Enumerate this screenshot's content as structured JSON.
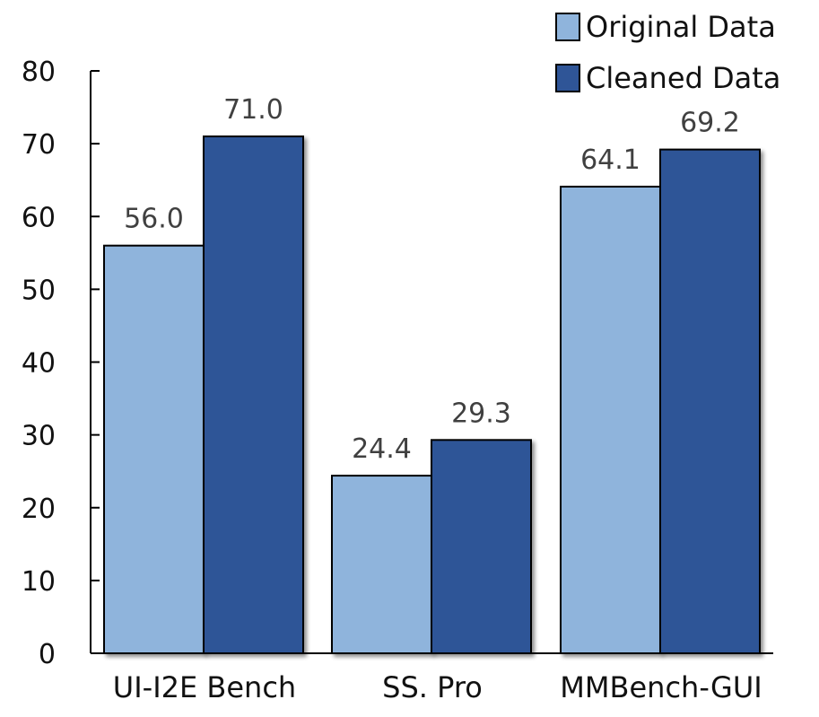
{
  "chart_data": {
    "type": "bar",
    "title": "",
    "xlabel": "",
    "ylabel": "",
    "categories": [
      "UI-I2E Bench",
      "SS. Pro",
      "MMBench-GUI"
    ],
    "series": [
      {
        "name": "Original Data",
        "values": [
          56.0,
          24.4,
          64.1
        ],
        "value_labels": [
          "56.0",
          "24.4",
          "64.1"
        ],
        "color": "#8fb4dc"
      },
      {
        "name": "Cleaned Data",
        "values": [
          71.0,
          29.3,
          69.2
        ],
        "value_labels": [
          "71.0",
          "29.3",
          "69.2"
        ],
        "color": "#2f5597"
      }
    ],
    "ylim": [
      0,
      80
    ],
    "yticks": [
      0,
      10,
      20,
      30,
      40,
      50,
      60,
      70,
      80
    ],
    "ytick_labels": [
      "0",
      "10",
      "20",
      "30",
      "40",
      "50",
      "60",
      "70",
      "80"
    ],
    "grid": false,
    "legend_position": "top-right"
  }
}
